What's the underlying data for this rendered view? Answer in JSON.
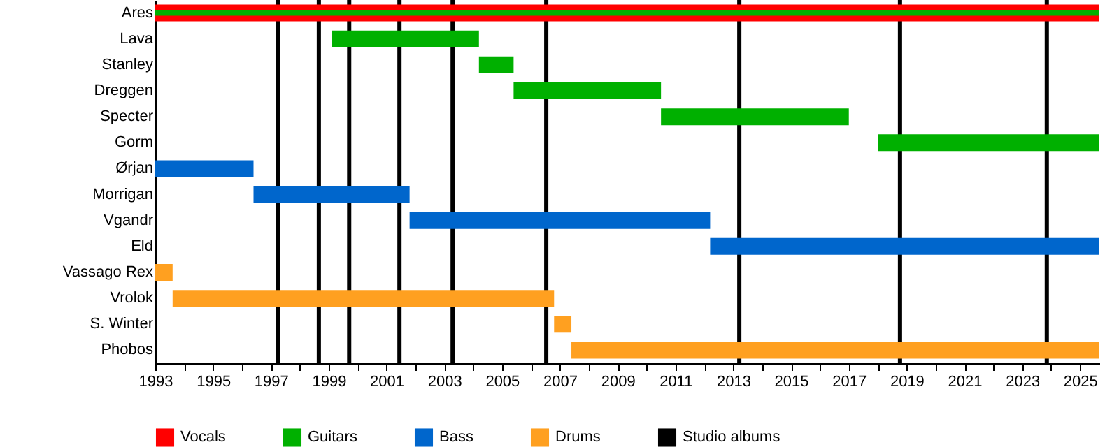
{
  "chart_data": {
    "type": "bar",
    "orientation": "horizontal",
    "legend": "bottom",
    "categories": [
      "Ares",
      "Lava",
      "Stanley",
      "Dreggen",
      "Specter",
      "Gorm",
      "Ørjan",
      "Morrigan",
      "Vgandr",
      "Eld",
      "Vassago Rex",
      "Vrolok",
      "S. Winter",
      "Phobos"
    ],
    "series": [
      {
        "name": "Vocals",
        "color": "#ff0000",
        "base": [
          1993,
          null,
          null,
          null,
          null,
          null,
          null,
          null,
          null,
          null,
          null,
          null,
          null,
          null
        ],
        "values": [
          32.67,
          null,
          null,
          null,
          null,
          null,
          null,
          null,
          null,
          null,
          null,
          null,
          null,
          null
        ]
      },
      {
        "name": "Guitars",
        "color": "#00b000",
        "base": [
          1993,
          1999.1,
          2004.2,
          2005.4,
          2010.5,
          2018.0,
          null,
          null,
          null,
          null,
          null,
          null,
          null,
          null
        ],
        "values": [
          32.67,
          5.1,
          1.2,
          5.1,
          6.5,
          7.67,
          null,
          null,
          null,
          null,
          null,
          null,
          null,
          null
        ]
      },
      {
        "name": "Bass",
        "color": "#0066cc",
        "base": [
          null,
          null,
          null,
          null,
          null,
          null,
          1993,
          1996.4,
          2001.8,
          2012.2,
          null,
          null,
          null,
          null
        ],
        "values": [
          null,
          null,
          null,
          null,
          null,
          null,
          3.4,
          5.4,
          10.4,
          13.47,
          null,
          null,
          null,
          null
        ]
      },
      {
        "name": "Drums",
        "color": "#ffa020",
        "base": [
          null,
          null,
          null,
          null,
          null,
          null,
          null,
          null,
          null,
          null,
          1993,
          1993.6,
          2006.8,
          2007.4
        ],
        "values": [
          null,
          null,
          null,
          null,
          null,
          null,
          null,
          null,
          null,
          null,
          0.6,
          13.2,
          0.6,
          18.27
        ]
      }
    ],
    "xlim": [
      1993,
      2025.67
    ],
    "xticks": [
      1993,
      {
        "value": 1994,
        "label": null
      },
      1995,
      {
        "value": 1996,
        "label": null
      },
      1997,
      {
        "value": 1998,
        "label": null
      },
      1999,
      {
        "value": 2000,
        "label": null
      },
      2001,
      {
        "value": 2002,
        "label": null
      },
      2003,
      {
        "value": 2004,
        "label": null
      },
      2005,
      {
        "value": 2006,
        "label": null
      },
      2007,
      {
        "value": 2008,
        "label": null
      },
      2009,
      {
        "value": 2010,
        "label": null
      },
      2011,
      {
        "value": 2012,
        "label": null
      },
      2013,
      {
        "value": 2014,
        "label": null
      },
      2015,
      {
        "value": 2016,
        "label": null
      },
      2017,
      {
        "value": 2018,
        "label": null
      },
      2019,
      {
        "value": 2020,
        "label": null
      },
      2021,
      {
        "value": 2022,
        "label": null
      },
      2023,
      {
        "value": 2024,
        "label": null
      },
      2025
    ],
    "ref_lines": [
      {
        "axis": "x",
        "value": 1997.24,
        "label": "Studio albums",
        "color": "#000000"
      },
      {
        "axis": "x",
        "value": 1998.66,
        "color": "#000000"
      },
      {
        "axis": "x",
        "value": 1999.71,
        "color": "#000000"
      },
      {
        "axis": "x",
        "value": 2001.45,
        "color": "#000000"
      },
      {
        "axis": "x",
        "value": 2003.29,
        "color": "#000000"
      },
      {
        "axis": "x",
        "value": 2006.53,
        "color": "#000000"
      },
      {
        "axis": "x",
        "value": 2013.21,
        "color": "#000000"
      },
      {
        "axis": "x",
        "value": 2018.77,
        "color": "#000000"
      },
      {
        "axis": "x",
        "value": 2023.85,
        "color": "#000000"
      }
    ]
  }
}
